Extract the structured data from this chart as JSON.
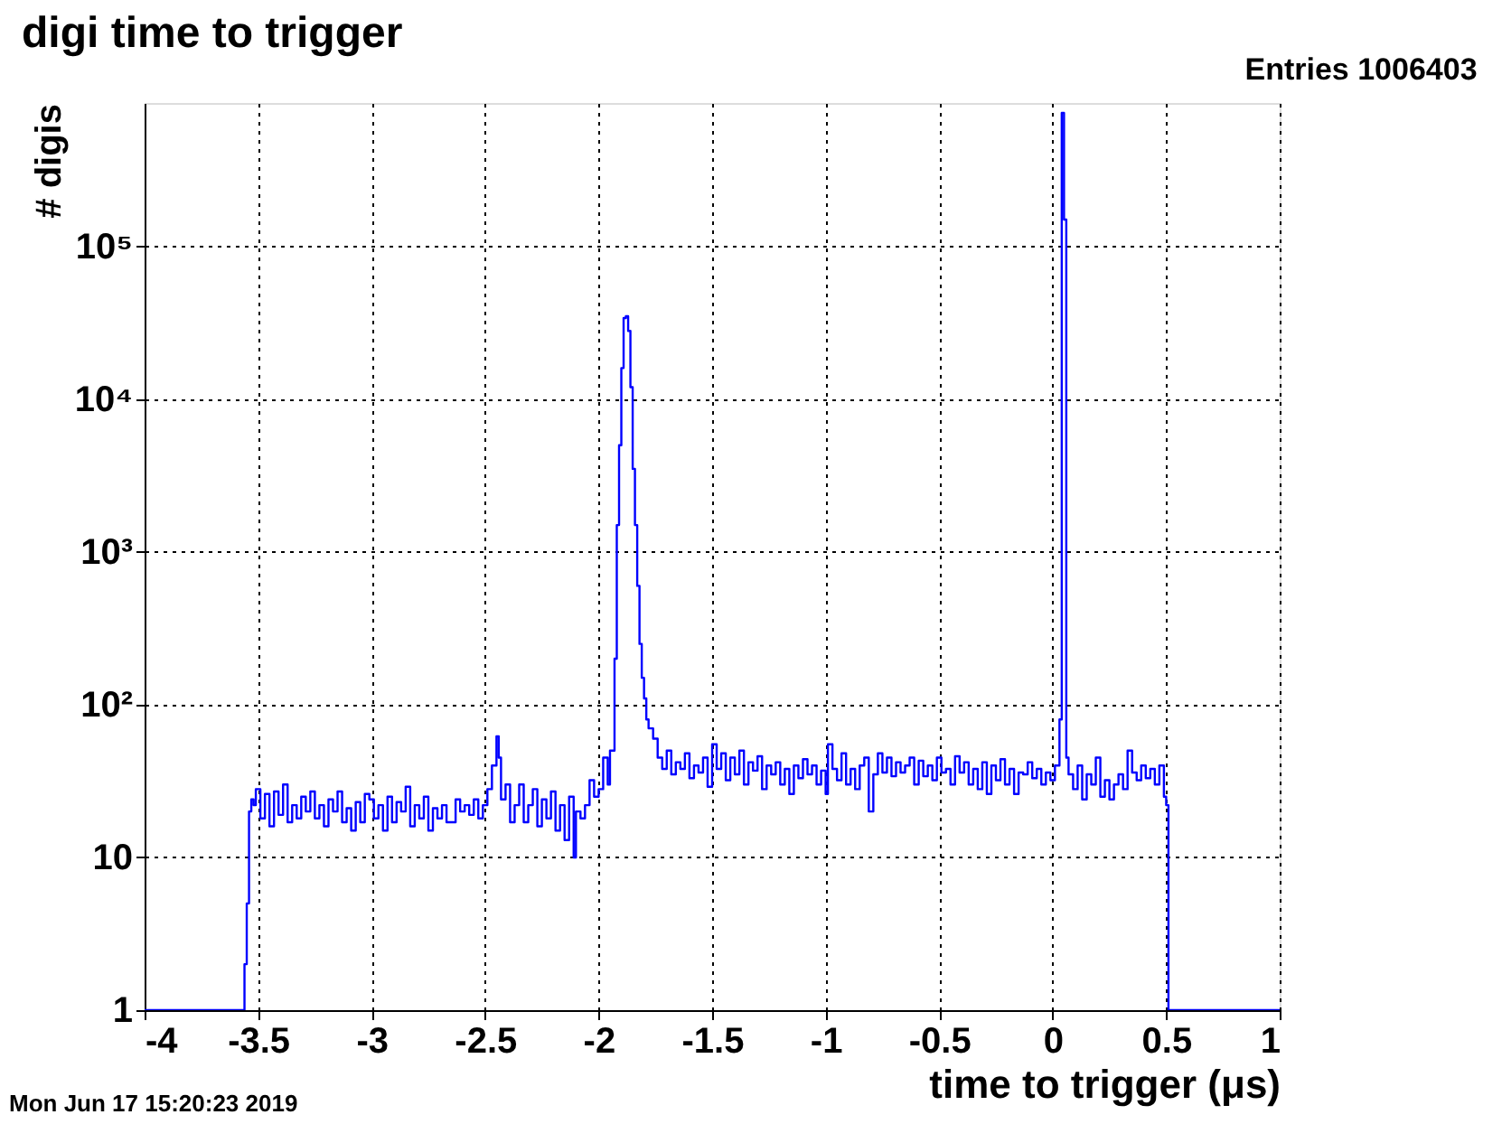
{
  "chart_data": {
    "type": "step",
    "title": "digi time to trigger",
    "xlabel": "time to trigger (μs)",
    "ylabel": "# digis",
    "annotations": [
      "Entries 1006403",
      "Mon Jun 17 15:20:23 2019"
    ],
    "x": [
      -4,
      -3.56,
      -3.55,
      -3.54,
      -3.53,
      -3.52,
      -3.51,
      -3.49,
      -3.47,
      -3.45,
      -3.43,
      -3.41,
      -3.39,
      -3.37,
      -3.35,
      -3.33,
      -3.31,
      -3.29,
      -3.27,
      -3.25,
      -3.23,
      -3.21,
      -3.19,
      -3.17,
      -3.15,
      -3.13,
      -3.11,
      -3.09,
      -3.07,
      -3.05,
      -3.03,
      -3.01,
      -2.99,
      -2.97,
      -2.95,
      -2.93,
      -2.91,
      -2.89,
      -2.87,
      -2.85,
      -2.83,
      -2.81,
      -2.79,
      -2.77,
      -2.75,
      -2.73,
      -2.71,
      -2.69,
      -2.67,
      -2.63,
      -2.61,
      -2.59,
      -2.57,
      -2.55,
      -2.53,
      -2.51,
      -2.49,
      -2.47,
      -2.45,
      -2.44,
      -2.43,
      -2.41,
      -2.39,
      -2.37,
      -2.35,
      -2.33,
      -2.31,
      -2.29,
      -2.27,
      -2.25,
      -2.23,
      -2.21,
      -2.19,
      -2.17,
      -2.15,
      -2.13,
      -2.11,
      -2.1,
      -2.08,
      -2.06,
      -2.04,
      -2.02,
      -2.0,
      -1.98,
      -1.96,
      -1.95,
      -1.93,
      -1.92,
      -1.91,
      -1.9,
      -1.89,
      -1.88,
      -1.87,
      -1.86,
      -1.85,
      -1.84,
      -1.83,
      -1.82,
      -1.81,
      -1.8,
      -1.79,
      -1.78,
      -1.76,
      -1.74,
      -1.72,
      -1.7,
      -1.68,
      -1.66,
      -1.64,
      -1.62,
      -1.6,
      -1.58,
      -1.56,
      -1.54,
      -1.52,
      -1.5,
      -1.48,
      -1.46,
      -1.44,
      -1.42,
      -1.4,
      -1.38,
      -1.36,
      -1.34,
      -1.32,
      -1.3,
      -1.28,
      -1.26,
      -1.24,
      -1.22,
      -1.2,
      -1.18,
      -1.16,
      -1.14,
      -1.12,
      -1.1,
      -1.08,
      -1.06,
      -1.04,
      -1.02,
      -1.0,
      -0.99,
      -0.97,
      -0.95,
      -0.93,
      -0.91,
      -0.89,
      -0.87,
      -0.85,
      -0.83,
      -0.81,
      -0.79,
      -0.77,
      -0.75,
      -0.73,
      -0.71,
      -0.69,
      -0.67,
      -0.65,
      -0.63,
      -0.61,
      -0.59,
      -0.57,
      -0.55,
      -0.53,
      -0.51,
      -0.49,
      -0.47,
      -0.45,
      -0.43,
      -0.41,
      -0.39,
      -0.37,
      -0.35,
      -0.33,
      -0.31,
      -0.29,
      -0.27,
      -0.25,
      -0.23,
      -0.21,
      -0.19,
      -0.17,
      -0.15,
      -0.13,
      -0.11,
      -0.09,
      -0.07,
      -0.05,
      -0.03,
      -0.01,
      0.01,
      0.03,
      0.04,
      0.05,
      0.06,
      0.07,
      0.09,
      0.11,
      0.13,
      0.15,
      0.17,
      0.19,
      0.21,
      0.23,
      0.25,
      0.27,
      0.29,
      0.31,
      0.33,
      0.35,
      0.37,
      0.39,
      0.41,
      0.43,
      0.45,
      0.47,
      0.49,
      0.5,
      0.51,
      1.0
    ],
    "series": [
      {
        "color": "#0000ff",
        "values": [
          1,
          2,
          5,
          20,
          24,
          22,
          28,
          18,
          26,
          16,
          27,
          19,
          30,
          17,
          22,
          18,
          25,
          20,
          27,
          18,
          22,
          16,
          24,
          20,
          27,
          17,
          21,
          15,
          23,
          17,
          26,
          24,
          18,
          22,
          15,
          25,
          17,
          23,
          20,
          29,
          16,
          22,
          18,
          25,
          15,
          21,
          18,
          22,
          17,
          24,
          20,
          22,
          19,
          24,
          18,
          22,
          28,
          40,
          62,
          45,
          24,
          30,
          17,
          22,
          30,
          17,
          22,
          28,
          16,
          24,
          18,
          27,
          15,
          22,
          13,
          25,
          10,
          20,
          18,
          22,
          32,
          25,
          28,
          45,
          30,
          50,
          200,
          1500,
          5000,
          16000,
          34000,
          35000,
          28000,
          12000,
          3500,
          1500,
          600,
          250,
          150,
          110,
          80,
          70,
          60,
          45,
          38,
          50,
          35,
          42,
          38,
          48,
          33,
          40,
          36,
          45,
          29,
          55,
          38,
          48,
          32,
          45,
          35,
          50,
          30,
          42,
          37,
          46,
          28,
          40,
          35,
          42,
          30,
          38,
          26,
          40,
          33,
          44,
          35,
          40,
          30,
          37,
          26,
          55,
          38,
          32,
          48,
          30,
          38,
          28,
          40,
          45,
          20,
          35,
          48,
          36,
          45,
          34,
          42,
          36,
          40,
          45,
          30,
          43,
          34,
          40,
          32,
          45,
          36,
          38,
          30,
          46,
          36,
          42,
          30,
          38,
          28,
          42,
          26,
          40,
          32,
          44,
          30,
          38,
          26,
          36,
          35,
          42,
          33,
          38,
          30,
          36,
          32,
          40,
          80,
          750000,
          150000,
          45,
          35,
          28,
          40,
          24,
          35,
          30,
          45,
          25,
          32,
          24,
          30,
          35,
          28,
          50,
          36,
          32,
          40,
          33,
          38,
          30,
          40,
          25,
          22,
          1,
          1
        ]
      }
    ],
    "log": "y",
    "xlim": [
      -4,
      1
    ],
    "xticks": [
      -4,
      -3.5,
      -3,
      -2.5,
      -2,
      -1.5,
      -1,
      -0.5,
      0,
      0.5,
      1
    ],
    "ylim": [
      1,
      870000
    ],
    "yticks": [
      1,
      10,
      {
        "value": 100,
        "label": "10²"
      },
      {
        "value": 1000,
        "label": "10³"
      },
      {
        "value": 10000,
        "label": "10⁴"
      },
      {
        "value": 100000,
        "label": "10⁵"
      }
    ],
    "grid": true
  }
}
